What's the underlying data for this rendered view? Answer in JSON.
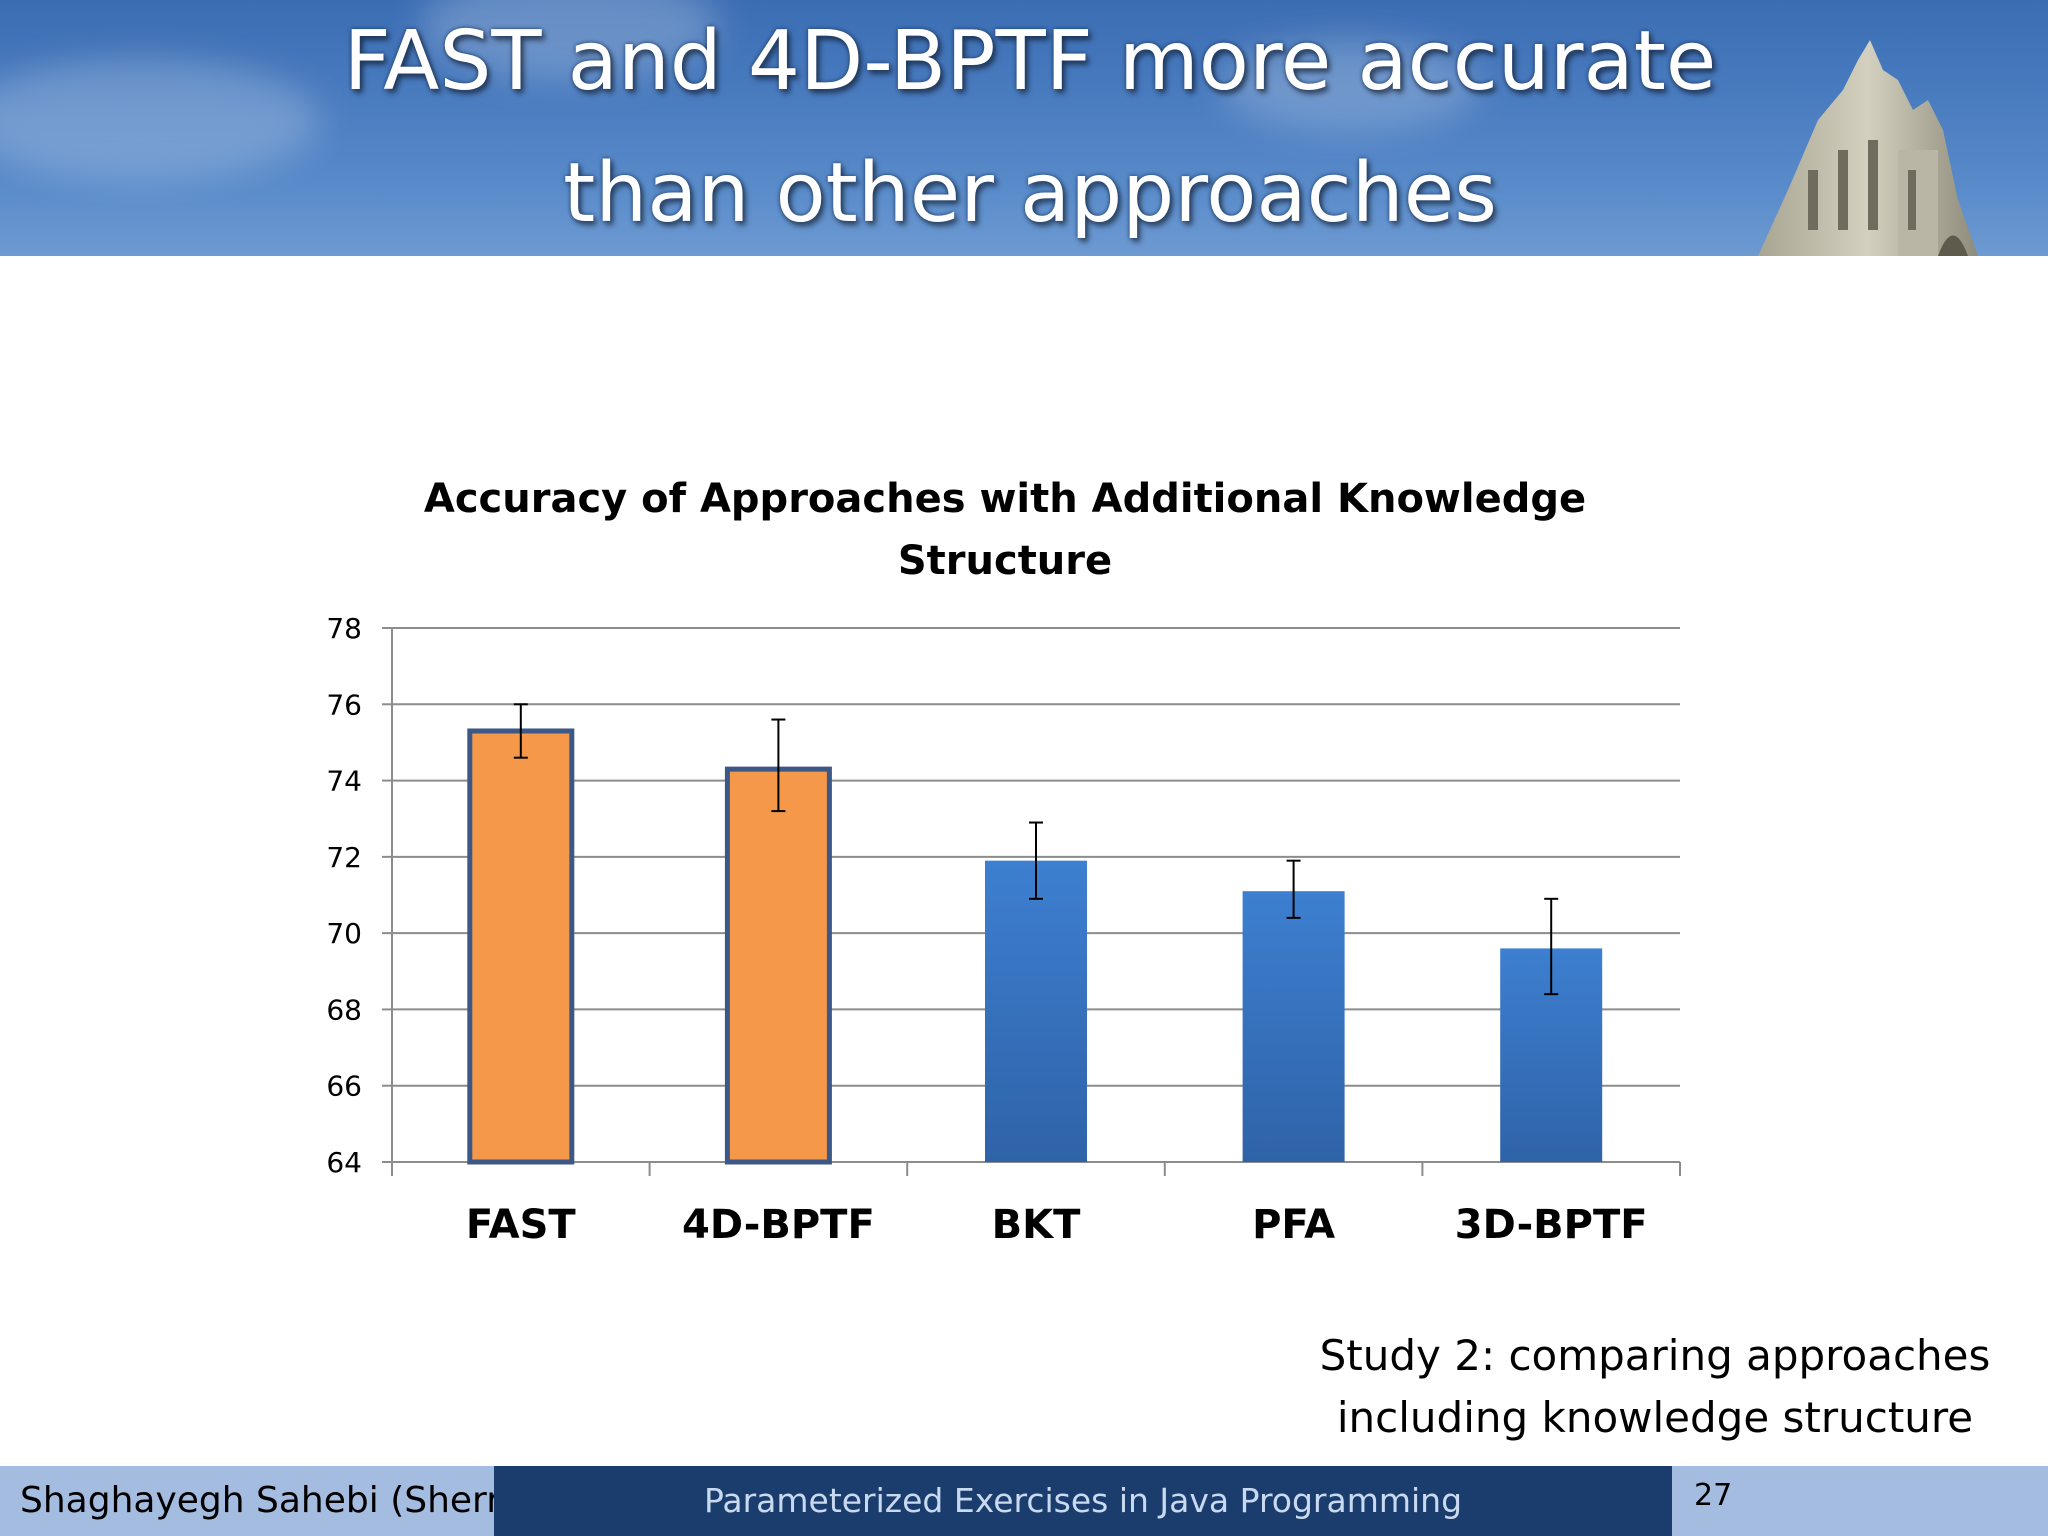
{
  "slide": {
    "title_lines": [
      "FAST and 4D-BPTF more accurate",
      "than other approaches"
    ],
    "caption_lines": [
      "Study 2: comparing approaches",
      "including knowledge structure"
    ]
  },
  "footer": {
    "author": "Shaghayegh Sahebi (Sherry)",
    "talk_title": "Parameterized Exercises in Java Programming",
    "page_number": "27"
  },
  "colors": {
    "highlight_bar": "#f5984a",
    "highlight_border": "#3c5886",
    "baseline_bar_top": "#3d7fd0",
    "baseline_bar_bottom": "#2f63a8",
    "gridline": "#8c8c8c"
  },
  "chart_data": {
    "type": "bar",
    "title_lines": [
      "Accuracy of Approaches with Additional Knowledge",
      "Structure"
    ],
    "categories": [
      "FAST",
      "4D-BPTF",
      "BKT",
      "PFA",
      "3D-BPTF"
    ],
    "values": [
      75.3,
      74.3,
      71.9,
      71.1,
      69.6
    ],
    "error_low": [
      74.6,
      73.2,
      70.9,
      70.4,
      68.4
    ],
    "error_high": [
      76.0,
      75.6,
      72.9,
      71.9,
      70.9
    ],
    "highlighted": [
      true,
      true,
      false,
      false,
      false
    ],
    "ylim": [
      64,
      78
    ],
    "yticks": [
      64,
      66,
      68,
      70,
      72,
      74,
      76,
      78
    ],
    "xlabel": "",
    "ylabel": "",
    "grid": true,
    "legend": "none"
  }
}
